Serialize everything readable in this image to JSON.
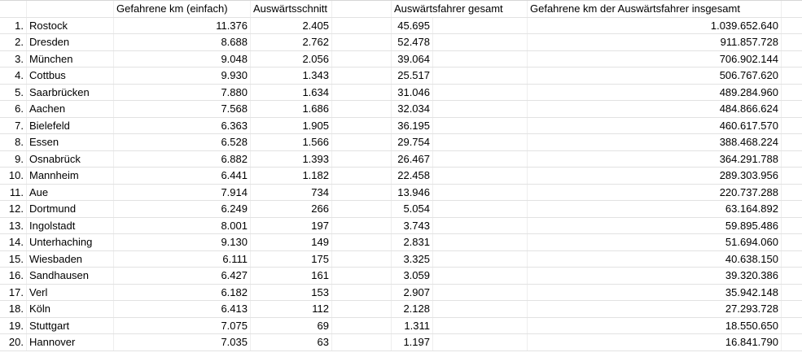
{
  "colors": {
    "background": "#ffffff",
    "text": "#000000",
    "gridline": "#e2e2e2"
  },
  "table": {
    "headers": {
      "km_einfach": "Gefahrene km (einfach)",
      "schnitt": "Auswärtsschnitt",
      "fahrer_gesamt": "Auswärtsfahrer gesamt",
      "km_gesamt": "Gefahrene km der Auswärtsfahrer insgesamt"
    },
    "rows": [
      {
        "rank": "1.",
        "city": "Rostock",
        "km_einfach": "11.376",
        "schnitt": "2.405",
        "fahrer_gesamt": "45.695",
        "km_gesamt": "1.039.652.640"
      },
      {
        "rank": "2.",
        "city": "Dresden",
        "km_einfach": "8.688",
        "schnitt": "2.762",
        "fahrer_gesamt": "52.478",
        "km_gesamt": "911.857.728"
      },
      {
        "rank": "3.",
        "city": "München",
        "km_einfach": "9.048",
        "schnitt": "2.056",
        "fahrer_gesamt": "39.064",
        "km_gesamt": "706.902.144"
      },
      {
        "rank": "4.",
        "city": "Cottbus",
        "km_einfach": "9.930",
        "schnitt": "1.343",
        "fahrer_gesamt": "25.517",
        "km_gesamt": "506.767.620"
      },
      {
        "rank": "5.",
        "city": "Saarbrücken",
        "km_einfach": "7.880",
        "schnitt": "1.634",
        "fahrer_gesamt": "31.046",
        "km_gesamt": "489.284.960"
      },
      {
        "rank": "6.",
        "city": "Aachen",
        "km_einfach": "7.568",
        "schnitt": "1.686",
        "fahrer_gesamt": "32.034",
        "km_gesamt": "484.866.624"
      },
      {
        "rank": "7.",
        "city": "Bielefeld",
        "km_einfach": "6.363",
        "schnitt": "1.905",
        "fahrer_gesamt": "36.195",
        "km_gesamt": "460.617.570"
      },
      {
        "rank": "8.",
        "city": "Essen",
        "km_einfach": "6.528",
        "schnitt": "1.566",
        "fahrer_gesamt": "29.754",
        "km_gesamt": "388.468.224"
      },
      {
        "rank": "9.",
        "city": "Osnabrück",
        "km_einfach": "6.882",
        "schnitt": "1.393",
        "fahrer_gesamt": "26.467",
        "km_gesamt": "364.291.788"
      },
      {
        "rank": "10.",
        "city": "Mannheim",
        "km_einfach": "6.441",
        "schnitt": "1.182",
        "fahrer_gesamt": "22.458",
        "km_gesamt": "289.303.956"
      },
      {
        "rank": "11.",
        "city": "Aue",
        "km_einfach": "7.914",
        "schnitt": "734",
        "fahrer_gesamt": "13.946",
        "km_gesamt": "220.737.288"
      },
      {
        "rank": "12.",
        "city": "Dortmund",
        "km_einfach": "6.249",
        "schnitt": "266",
        "fahrer_gesamt": "5.054",
        "km_gesamt": "63.164.892"
      },
      {
        "rank": "13.",
        "city": "Ingolstadt",
        "km_einfach": "8.001",
        "schnitt": "197",
        "fahrer_gesamt": "3.743",
        "km_gesamt": "59.895.486"
      },
      {
        "rank": "14.",
        "city": "Unterhaching",
        "km_einfach": "9.130",
        "schnitt": "149",
        "fahrer_gesamt": "2.831",
        "km_gesamt": "51.694.060"
      },
      {
        "rank": "15.",
        "city": "Wiesbaden",
        "km_einfach": "6.111",
        "schnitt": "175",
        "fahrer_gesamt": "3.325",
        "km_gesamt": "40.638.150"
      },
      {
        "rank": "16.",
        "city": "Sandhausen",
        "km_einfach": "6.427",
        "schnitt": "161",
        "fahrer_gesamt": "3.059",
        "km_gesamt": "39.320.386"
      },
      {
        "rank": "17.",
        "city": "Verl",
        "km_einfach": "6.182",
        "schnitt": "153",
        "fahrer_gesamt": "2.907",
        "km_gesamt": "35.942.148"
      },
      {
        "rank": "18.",
        "city": "Köln",
        "km_einfach": "6.413",
        "schnitt": "112",
        "fahrer_gesamt": "2.128",
        "km_gesamt": "27.293.728"
      },
      {
        "rank": "19.",
        "city": "Stuttgart",
        "km_einfach": "7.075",
        "schnitt": "69",
        "fahrer_gesamt": "1.311",
        "km_gesamt": "18.550.650"
      },
      {
        "rank": "20.",
        "city": "Hannover",
        "km_einfach": "7.035",
        "schnitt": "63",
        "fahrer_gesamt": "1.197",
        "km_gesamt": "16.841.790"
      }
    ]
  }
}
